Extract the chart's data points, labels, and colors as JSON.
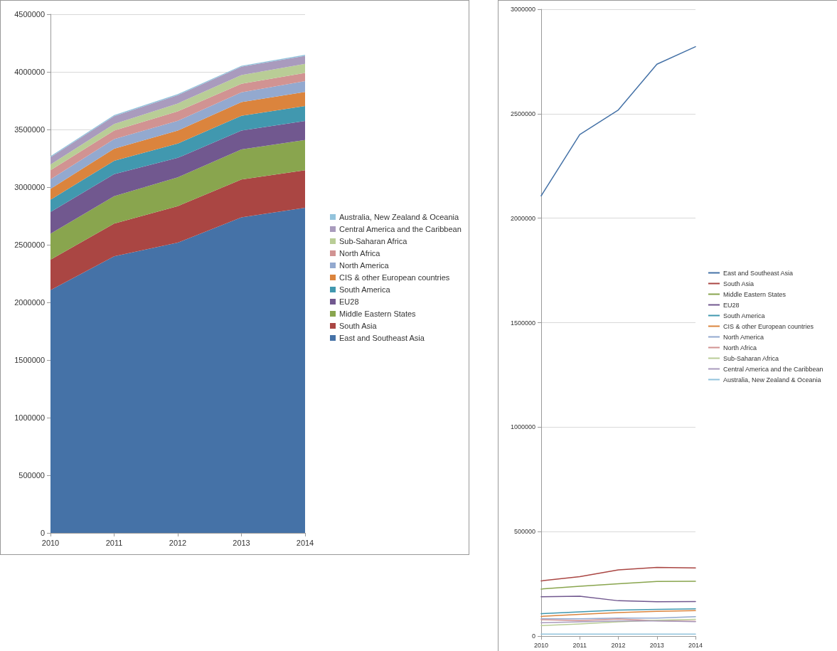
{
  "chart_data": [
    {
      "type": "area",
      "stacked": true,
      "categories": [
        "2010",
        "2011",
        "2012",
        "2013",
        "2014"
      ],
      "ylim": [
        0,
        4500000
      ],
      "yticks": [
        0,
        500000,
        1000000,
        1500000,
        2000000,
        2500000,
        3000000,
        3500000,
        4000000,
        4500000
      ],
      "grid": "y",
      "legend": "right",
      "series": [
        {
          "name": "East and Southeast Asia",
          "color": "#4572a7",
          "values": [
            2107000,
            2400000,
            2518000,
            2737000,
            2821000
          ]
        },
        {
          "name": "South Asia",
          "color": "#aa4643",
          "values": [
            264000,
            284000,
            317000,
            329000,
            326000
          ]
        },
        {
          "name": "Middle Eastern States",
          "color": "#89a54e",
          "values": [
            225000,
            238000,
            250000,
            261000,
            262000
          ]
        },
        {
          "name": "EU28",
          "color": "#71588f",
          "values": [
            188000,
            191000,
            169000,
            164000,
            165000
          ]
        },
        {
          "name": "South America",
          "color": "#4198af",
          "values": [
            107000,
            116000,
            124000,
            128000,
            130000
          ]
        },
        {
          "name": "CIS & other European countries",
          "color": "#db843d",
          "values": [
            94000,
            104000,
            112000,
            118000,
            122000
          ]
        },
        {
          "name": "North America",
          "color": "#93a9cf",
          "values": [
            83000,
            83000,
            86000,
            86000,
            93000
          ]
        },
        {
          "name": "North Africa",
          "color": "#d19392",
          "values": [
            78000,
            74000,
            82000,
            73000,
            71000
          ]
        },
        {
          "name": "Sub-Saharan Africa",
          "color": "#b9cd96",
          "values": [
            50000,
            58000,
            68000,
            76000,
            80000
          ]
        },
        {
          "name": "Central America and the Caribbean",
          "color": "#a99bbd",
          "values": [
            64000,
            68000,
            72000,
            72000,
            69000
          ]
        },
        {
          "name": "Australia, New Zealand & Oceania",
          "color": "#92c3dc",
          "values": [
            9000,
            9000,
            9000,
            9000,
            9000
          ]
        }
      ]
    },
    {
      "type": "line",
      "marker": "none",
      "categories": [
        "2010",
        "2011",
        "2012",
        "2013",
        "2014"
      ],
      "ylim": [
        0,
        3000000
      ],
      "yticks": [
        0,
        500000,
        1000000,
        1500000,
        2000000,
        2500000,
        3000000
      ],
      "grid": "y",
      "legend": "right",
      "series": [
        {
          "name": "East and Southeast Asia",
          "color": "#4572a7",
          "values": [
            2107000,
            2400000,
            2518000,
            2737000,
            2821000
          ]
        },
        {
          "name": "South Asia",
          "color": "#aa4643",
          "values": [
            264000,
            284000,
            317000,
            329000,
            326000
          ]
        },
        {
          "name": "Middle Eastern States",
          "color": "#89a54e",
          "values": [
            225000,
            238000,
            250000,
            261000,
            262000
          ]
        },
        {
          "name": "EU28",
          "color": "#71588f",
          "values": [
            188000,
            191000,
            169000,
            164000,
            165000
          ]
        },
        {
          "name": "South America",
          "color": "#4198af",
          "values": [
            107000,
            116000,
            124000,
            128000,
            130000
          ]
        },
        {
          "name": "CIS & other European countries",
          "color": "#db843d",
          "values": [
            94000,
            104000,
            112000,
            118000,
            122000
          ]
        },
        {
          "name": "North America",
          "color": "#93a9cf",
          "values": [
            83000,
            83000,
            86000,
            86000,
            93000
          ]
        },
        {
          "name": "North Africa",
          "color": "#d19392",
          "values": [
            78000,
            74000,
            82000,
            73000,
            71000
          ]
        },
        {
          "name": "Sub-Saharan Africa",
          "color": "#b9cd96",
          "values": [
            50000,
            58000,
            68000,
            76000,
            80000
          ]
        },
        {
          "name": "Central America and the Caribbean",
          "color": "#a99bbd",
          "values": [
            64000,
            68000,
            72000,
            72000,
            69000
          ]
        },
        {
          "name": "Australia, New Zealand & Oceania",
          "color": "#92c3dc",
          "values": [
            9000,
            9000,
            9000,
            9000,
            9000
          ]
        }
      ]
    }
  ]
}
